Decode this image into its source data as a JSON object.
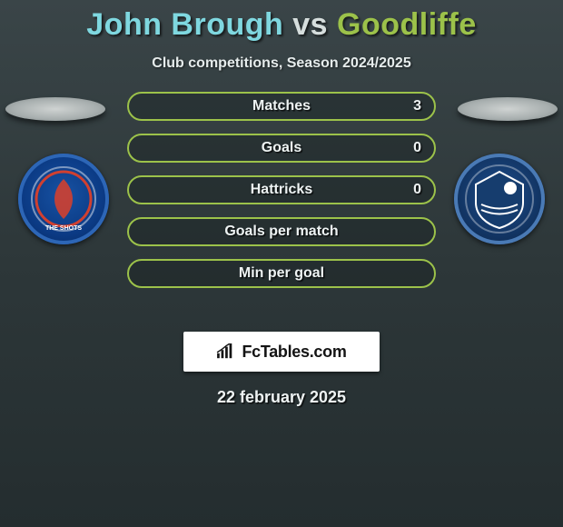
{
  "title": {
    "player1": "John Brough",
    "vs": "vs",
    "player2": "Goodliffe",
    "player1_color": "#7fd8e0",
    "player2_color": "#9cc24a"
  },
  "subtitle": "Club competitions, Season 2024/2025",
  "left_crest": {
    "name": "aldershot-town-crest"
  },
  "right_crest": {
    "name": "southend-united-crest"
  },
  "bar_style": {
    "p1_fill": "#3e7e86",
    "p1_border": "#6fb9c1",
    "p2_border": "#9cc24a",
    "track_bg": "rgba(20,30,30,0.35)"
  },
  "bars": [
    {
      "label": "Matches",
      "left": "",
      "right": "3",
      "fill_pct": 0
    },
    {
      "label": "Goals",
      "left": "",
      "right": "0",
      "fill_pct": 0
    },
    {
      "label": "Hattricks",
      "left": "",
      "right": "0",
      "fill_pct": 0
    },
    {
      "label": "Goals per match",
      "left": "",
      "right": "",
      "fill_pct": 0
    },
    {
      "label": "Min per goal",
      "left": "",
      "right": "",
      "fill_pct": 0
    }
  ],
  "watermark": "FcTables.com",
  "date": "22 february 2025"
}
